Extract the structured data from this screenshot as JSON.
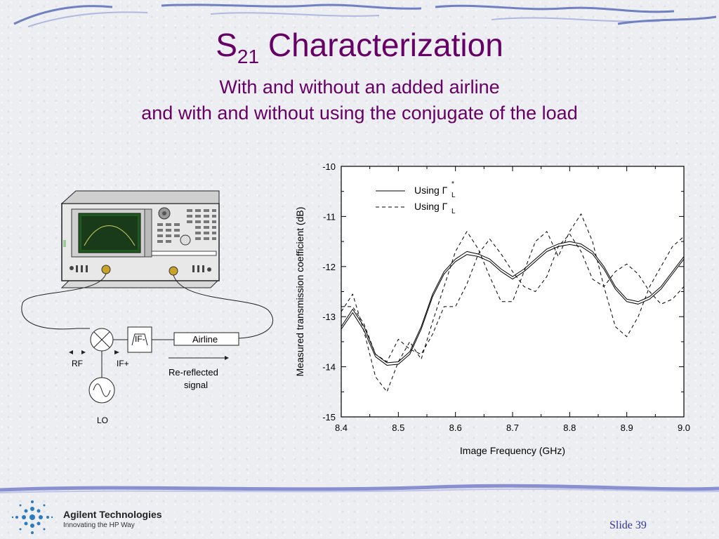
{
  "slide": {
    "title_main": "S",
    "title_sub": "21",
    "title_rest": " Characterization",
    "subtitle_line1": "With and without an added airline",
    "subtitle_line2": "and with and without using the conjugate of the load",
    "slide_number": "Slide 39",
    "accent_color": "#660066"
  },
  "logo": {
    "company": "Agilent Technologies",
    "tagline": "Innovating the HP Way"
  },
  "diagram": {
    "airline_label": "Airline",
    "if_minus": "IF-",
    "if_plus": "IF+",
    "rf": "RF",
    "lo": "LO",
    "re_reflected_1": "Re-reflected",
    "re_reflected_2": "signal"
  },
  "chart_data": {
    "type": "line",
    "xlabel": "Image Frequency (GHz)",
    "ylabel": "Measured transmission coefficient (dB)",
    "xlim": [
      8.4,
      9.0
    ],
    "ylim": [
      -15,
      -10
    ],
    "xticks": [
      "8.4",
      "8.5",
      "8.6",
      "8.7",
      "8.8",
      "8.9",
      "9.0"
    ],
    "yticks": [
      "-10",
      "-11",
      "-12",
      "-13",
      "-14",
      "-15"
    ],
    "legend": {
      "placement": "top-left",
      "solid": "Using Γ",
      "solid_sup": "*",
      "solid_sub": "L",
      "dashed": "Using Γ",
      "dashed_sub": "L"
    },
    "series": [
      {
        "style": "solid",
        "x": [
          8.4,
          8.42,
          8.44,
          8.46,
          8.48,
          8.5,
          8.52,
          8.54,
          8.56,
          8.58,
          8.6,
          8.62,
          8.64,
          8.66,
          8.68,
          8.7,
          8.72,
          8.74,
          8.76,
          8.78,
          8.8,
          8.82,
          8.84,
          8.86,
          8.88,
          8.9,
          8.92,
          8.94,
          8.96,
          8.98,
          9.0
        ],
        "y": [
          -13.2,
          -12.85,
          -13.2,
          -13.75,
          -13.92,
          -13.9,
          -13.7,
          -13.2,
          -12.55,
          -12.1,
          -11.85,
          -11.7,
          -11.75,
          -11.85,
          -12.05,
          -12.2,
          -12.05,
          -11.85,
          -11.65,
          -11.55,
          -11.5,
          -11.55,
          -11.7,
          -12.0,
          -12.4,
          -12.65,
          -12.7,
          -12.6,
          -12.4,
          -12.1,
          -11.8
        ]
      },
      {
        "style": "solid",
        "x": [
          8.4,
          8.42,
          8.44,
          8.46,
          8.48,
          8.5,
          8.52,
          8.54,
          8.56,
          8.58,
          8.6,
          8.62,
          8.64,
          8.66,
          8.68,
          8.7,
          8.72,
          8.74,
          8.76,
          8.78,
          8.8,
          8.82,
          8.84,
          8.86,
          8.88,
          8.9,
          8.92,
          8.94,
          8.96,
          8.98,
          9.0
        ],
        "y": [
          -13.25,
          -12.92,
          -13.28,
          -13.8,
          -13.97,
          -13.95,
          -13.75,
          -13.25,
          -12.6,
          -12.15,
          -11.9,
          -11.76,
          -11.8,
          -11.9,
          -12.1,
          -12.25,
          -12.1,
          -11.9,
          -11.7,
          -11.6,
          -11.56,
          -11.6,
          -11.75,
          -12.05,
          -12.45,
          -12.7,
          -12.75,
          -12.65,
          -12.45,
          -12.15,
          -11.85
        ]
      },
      {
        "style": "dashed",
        "x": [
          8.4,
          8.42,
          8.44,
          8.46,
          8.48,
          8.5,
          8.52,
          8.54,
          8.56,
          8.58,
          8.6,
          8.62,
          8.64,
          8.66,
          8.68,
          8.7,
          8.72,
          8.74,
          8.76,
          8.78,
          8.8,
          8.82,
          8.84,
          8.86,
          8.88,
          8.9,
          8.92,
          8.94,
          8.96,
          8.98,
          9.0
        ],
        "y": [
          -12.9,
          -12.55,
          -13.3,
          -14.2,
          -14.5,
          -13.9,
          -13.5,
          -13.85,
          -13.1,
          -12.4,
          -11.7,
          -11.3,
          -11.65,
          -12.2,
          -12.7,
          -12.7,
          -12.1,
          -11.5,
          -11.3,
          -11.8,
          -11.3,
          -10.95,
          -11.5,
          -12.4,
          -13.2,
          -13.4,
          -13.0,
          -12.4,
          -12.0,
          -11.6,
          -11.4
        ]
      },
      {
        "style": "dashed",
        "x": [
          8.4,
          8.42,
          8.44,
          8.46,
          8.48,
          8.5,
          8.52,
          8.54,
          8.56,
          8.58,
          8.6,
          8.62,
          8.64,
          8.66,
          8.68,
          8.7,
          8.72,
          8.74,
          8.76,
          8.78,
          8.8,
          8.82,
          8.84,
          8.86,
          8.88,
          8.9,
          8.92,
          8.94,
          8.96,
          8.98,
          9.0
        ],
        "y": [
          -12.8,
          -12.8,
          -13.15,
          -13.75,
          -13.9,
          -13.45,
          -13.65,
          -13.75,
          -13.35,
          -12.8,
          -12.8,
          -12.35,
          -11.75,
          -11.45,
          -11.75,
          -12.1,
          -12.4,
          -12.5,
          -12.2,
          -11.6,
          -11.35,
          -11.7,
          -12.25,
          -12.4,
          -12.1,
          -11.95,
          -12.15,
          -12.5,
          -12.75,
          -12.65,
          -12.4
        ]
      }
    ]
  }
}
